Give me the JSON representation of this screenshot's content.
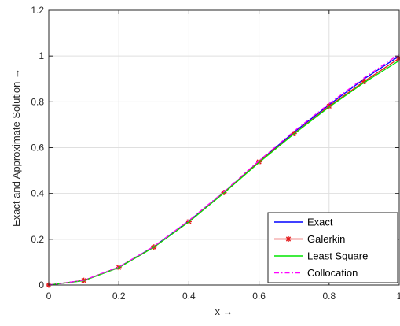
{
  "chart_data": {
    "type": "line",
    "title": "",
    "xlabel": "x →",
    "ylabel": "Exact and Approximate Solution →",
    "xlim": [
      0,
      1
    ],
    "ylim": [
      0,
      1.2
    ],
    "xticks": [
      "0",
      "0.2",
      "0.4",
      "0.6",
      "0.8",
      "1"
    ],
    "yticks": [
      "0",
      "0.2",
      "0.4",
      "0.6",
      "0.8",
      "1",
      "1.2"
    ],
    "grid": true,
    "legend_position": "bottom-right",
    "x": [
      0,
      0.1,
      0.2,
      0.3,
      0.4,
      0.5,
      0.6,
      0.7,
      0.8,
      0.9,
      1.0
    ],
    "series": [
      {
        "name": "Exact",
        "color": "#0000ff",
        "style": "solid",
        "marker": "none",
        "values": [
          0,
          0.02,
          0.078,
          0.168,
          0.28,
          0.405,
          0.54,
          0.668,
          0.787,
          0.9,
          1.0
        ]
      },
      {
        "name": "Galerkin",
        "color": "#e41a1c",
        "style": "solid",
        "marker": "asterisk",
        "values": [
          0,
          0.02,
          0.077,
          0.166,
          0.277,
          0.404,
          0.538,
          0.662,
          0.781,
          0.889,
          0.99
        ]
      },
      {
        "name": "Least Square",
        "color": "#00e600",
        "style": "solid",
        "marker": "none",
        "values": [
          0,
          0.019,
          0.076,
          0.165,
          0.276,
          0.402,
          0.535,
          0.66,
          0.777,
          0.884,
          0.98
        ]
      },
      {
        "name": "Collocation",
        "color": "#ff00ff",
        "style": "dashdot",
        "marker": "none",
        "values": [
          0,
          0.021,
          0.079,
          0.169,
          0.282,
          0.408,
          0.543,
          0.672,
          0.792,
          0.905,
          1.008
        ]
      }
    ]
  }
}
